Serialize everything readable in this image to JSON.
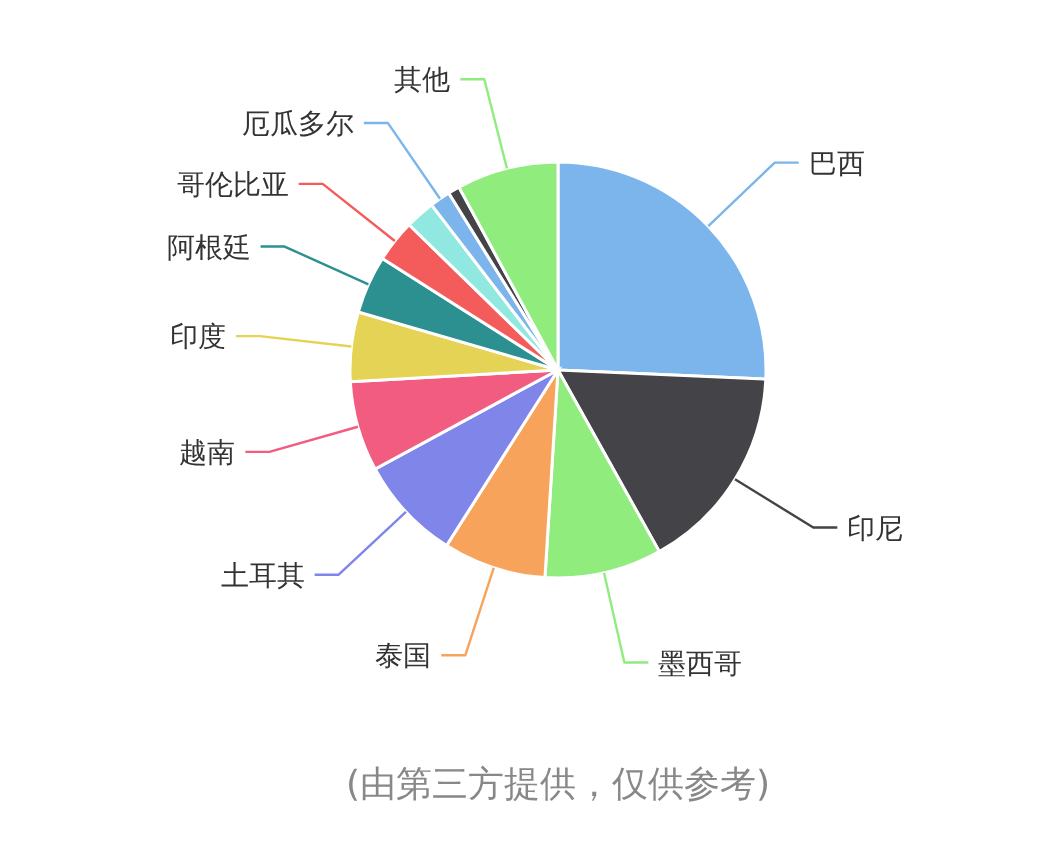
{
  "chart_data": {
    "type": "pie",
    "categories": [
      "巴西",
      "印尼",
      "墨西哥",
      "泰国",
      "土耳其",
      "越南",
      "印度",
      "阿根廷",
      "哥伦比亚",
      null,
      "厄瓜多尔",
      null,
      "其他"
    ],
    "values": [
      25.7,
      16.2,
      9.1,
      8.0,
      8.1,
      7.0,
      5.4,
      4.5,
      3.3,
      2.3,
      1.6,
      0.9,
      7.9
    ],
    "colors": [
      "#7cb5ec",
      "#434348",
      "#90ed7d",
      "#f7a35c",
      "#8085e9",
      "#f15c80",
      "#e4d354",
      "#2b908f",
      "#f45b5b",
      "#91e8e1",
      "#7cb5ec",
      "#434348",
      "#90ed7d"
    ],
    "annotations": [
      "(由第三方提供，仅供参考)"
    ]
  }
}
